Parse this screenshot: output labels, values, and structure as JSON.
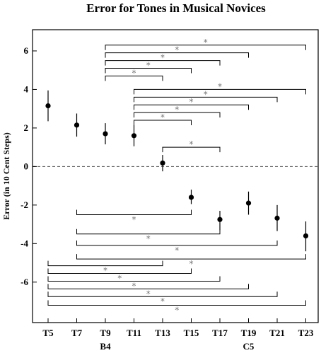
{
  "chart_data": {
    "type": "scatter",
    "title": "Error for Tones in Musical Novices",
    "xlabel": "",
    "ylabel": "Error (in 10 Cent Steps)",
    "categories": [
      "T5",
      "T7",
      "T9",
      "T11",
      "T13",
      "T15",
      "T17",
      "T19",
      "T21",
      "T23"
    ],
    "category_notes": [
      {
        "category": "T9",
        "text": "B4"
      },
      {
        "category": "T19",
        "text": "C5"
      }
    ],
    "values": [
      3.15,
      2.15,
      1.7,
      1.6,
      0.18,
      -1.6,
      -2.75,
      -1.9,
      -2.68,
      -3.6
    ],
    "error_low": [
      2.35,
      1.55,
      1.15,
      1.05,
      -0.25,
      -1.95,
      -3.3,
      -2.5,
      -3.35,
      -4.4
    ],
    "error_high": [
      3.95,
      2.75,
      2.25,
      2.15,
      0.6,
      -1.2,
      -2.3,
      -1.3,
      -2.0,
      -2.85
    ],
    "ylim": [
      -8.1,
      7.1
    ],
    "yticks": [
      -6,
      -4,
      -2,
      0,
      2,
      4,
      6
    ],
    "reference_line": 0,
    "significance_brackets": [
      {
        "from": "T9",
        "to": "T23",
        "y": 6.3,
        "dir": "down",
        "label": "*"
      },
      {
        "from": "T9",
        "to": "T19",
        "y": 5.9,
        "dir": "down",
        "label": "*"
      },
      {
        "from": "T9",
        "to": "T17",
        "y": 5.5,
        "dir": "down",
        "label": "*"
      },
      {
        "from": "T9",
        "to": "T15",
        "y": 5.1,
        "dir": "down",
        "label": "*"
      },
      {
        "from": "T9",
        "to": "T13",
        "y": 4.7,
        "dir": "down",
        "label": "*"
      },
      {
        "from": "T11",
        "to": "T23",
        "y": 4.0,
        "dir": "down",
        "label": "*"
      },
      {
        "from": "T11",
        "to": "T21",
        "y": 3.6,
        "dir": "down",
        "label": "*"
      },
      {
        "from": "T11",
        "to": "T19",
        "y": 3.2,
        "dir": "down",
        "label": "*"
      },
      {
        "from": "T11",
        "to": "T17",
        "y": 2.8,
        "dir": "down",
        "label": "*"
      },
      {
        "from": "T11",
        "to": "T15",
        "y": 2.4,
        "dir": "down",
        "label": "*"
      },
      {
        "from": "T13",
        "to": "T17",
        "y": 1.0,
        "dir": "down",
        "label": "*"
      },
      {
        "from": "T7",
        "to": "T15",
        "y": -2.5,
        "dir": "up",
        "label": "*"
      },
      {
        "from": "T7",
        "to": "T17",
        "y": -3.5,
        "dir": "up",
        "label": "*"
      },
      {
        "from": "T7",
        "to": "T21",
        "y": -4.1,
        "dir": "up",
        "label": "*"
      },
      {
        "from": "T7",
        "to": "T23",
        "y": -4.8,
        "dir": "up",
        "label": "*"
      },
      {
        "from": "T5",
        "to": "T13",
        "y": -5.15,
        "dir": "up",
        "label": "*"
      },
      {
        "from": "T5",
        "to": "T15",
        "y": -5.55,
        "dir": "up",
        "label": "*"
      },
      {
        "from": "T5",
        "to": "T17",
        "y": -5.95,
        "dir": "up",
        "label": "*"
      },
      {
        "from": "T5",
        "to": "T19",
        "y": -6.35,
        "dir": "up",
        "label": "*"
      },
      {
        "from": "T5",
        "to": "T21",
        "y": -6.75,
        "dir": "up",
        "label": "*"
      },
      {
        "from": "T5",
        "to": "T23",
        "y": -7.2,
        "dir": "up",
        "label": "*"
      }
    ]
  }
}
